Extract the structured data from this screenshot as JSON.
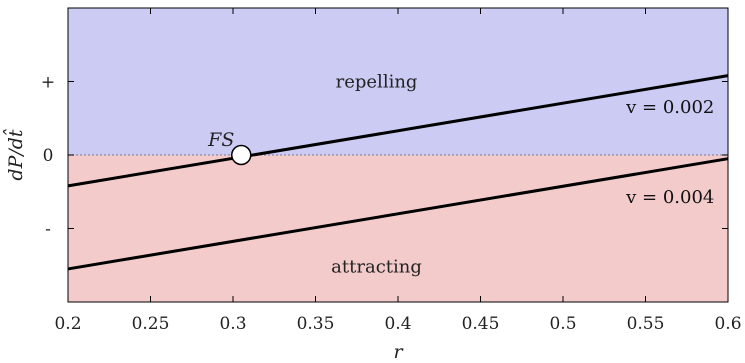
{
  "chart_data": {
    "type": "line",
    "xlabel": "r",
    "ylabel": "dP/dt̂",
    "xlim": [
      0.2,
      0.6
    ],
    "ylim": [
      -2,
      2
    ],
    "x_ticks": [
      0.2,
      0.25,
      0.3,
      0.35,
      0.4,
      0.45,
      0.5,
      0.55,
      0.6
    ],
    "x_tick_labels": [
      "0.2",
      "0.25",
      "0.3",
      "0.35",
      "0.4",
      "0.45",
      "0.5",
      "0.55",
      "0.6"
    ],
    "y_ticks": [
      1,
      0,
      -1
    ],
    "y_tick_labels": [
      "+",
      "0",
      "-"
    ],
    "grid": false,
    "series": [
      {
        "label": "v = 0.002",
        "x": [
          0.2,
          0.6
        ],
        "y": [
          -0.42,
          1.08
        ],
        "color": "#000000"
      },
      {
        "label": "v = 0.004",
        "x": [
          0.2,
          0.6
        ],
        "y": [
          -1.55,
          -0.05
        ],
        "color": "#000000"
      }
    ],
    "regions": [
      {
        "label": "repelling",
        "y_from": 0,
        "y_to": 2,
        "color": "#cbcbf3",
        "label_x": 0.387,
        "label_y": 1.0
      },
      {
        "label": "attracting",
        "y_from": -2,
        "y_to": 0,
        "color": "#f3cbcb",
        "label_x": 0.387,
        "label_y": -1.52
      }
    ],
    "annotations": [
      {
        "label": "FS",
        "x": 0.305,
        "y": 0
      }
    ],
    "series_label_positions": [
      {
        "x": 0.565,
        "y": 0.65
      },
      {
        "x": 0.565,
        "y": -0.57
      }
    ]
  }
}
